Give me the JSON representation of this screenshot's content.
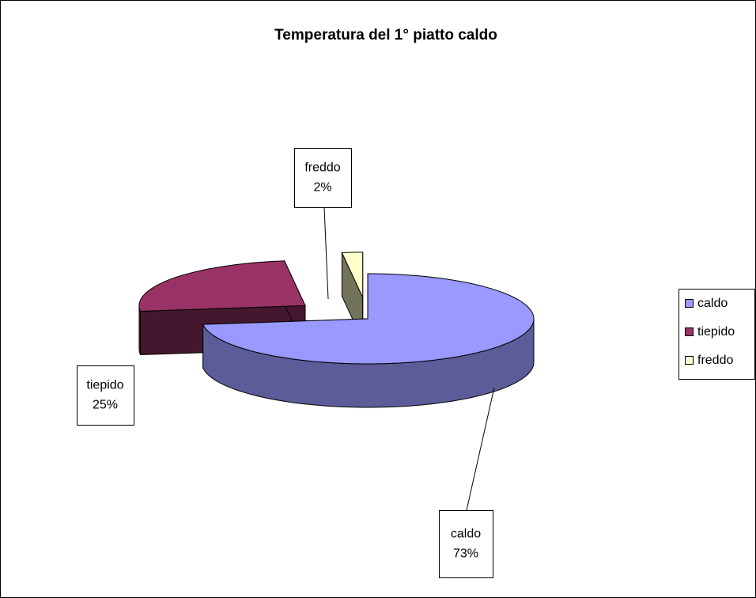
{
  "chart_data": {
    "type": "pie",
    "title": "Temperatura del 1° piatto caldo",
    "categories": [
      "caldo",
      "tiepido",
      "freddo"
    ],
    "values": [
      73,
      25,
      2
    ],
    "value_labels": [
      "73%",
      "25%",
      "2%"
    ],
    "colors": [
      "#9999ff",
      "#993366",
      "#ffffcc"
    ],
    "legend": "right"
  }
}
